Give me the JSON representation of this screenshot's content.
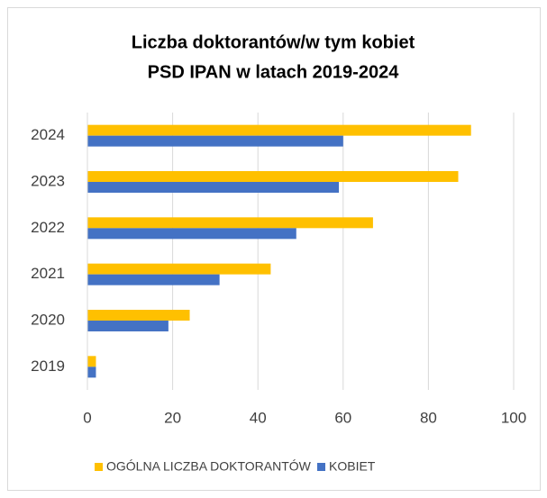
{
  "chart_data": {
    "type": "barh",
    "title": [
      "Liczba doktorantów/w tym kobiet",
      "PSD IPAN w latach 2019-2024"
    ],
    "categories": [
      "2019",
      "2020",
      "2021",
      "2022",
      "2023",
      "2024"
    ],
    "series": [
      {
        "name": "OGÓLNA LICZBA DOKTORANTÓW",
        "color": "#ffc000",
        "values": [
          2,
          24,
          43,
          67,
          87,
          90
        ]
      },
      {
        "name": "KOBIET",
        "color": "#4472c4",
        "values": [
          2,
          19,
          31,
          49,
          59,
          60
        ]
      }
    ],
    "xlim": [
      0,
      100
    ],
    "xticks": [
      0,
      20,
      40,
      60,
      80,
      100
    ],
    "grid": true,
    "legend": "bottom"
  }
}
